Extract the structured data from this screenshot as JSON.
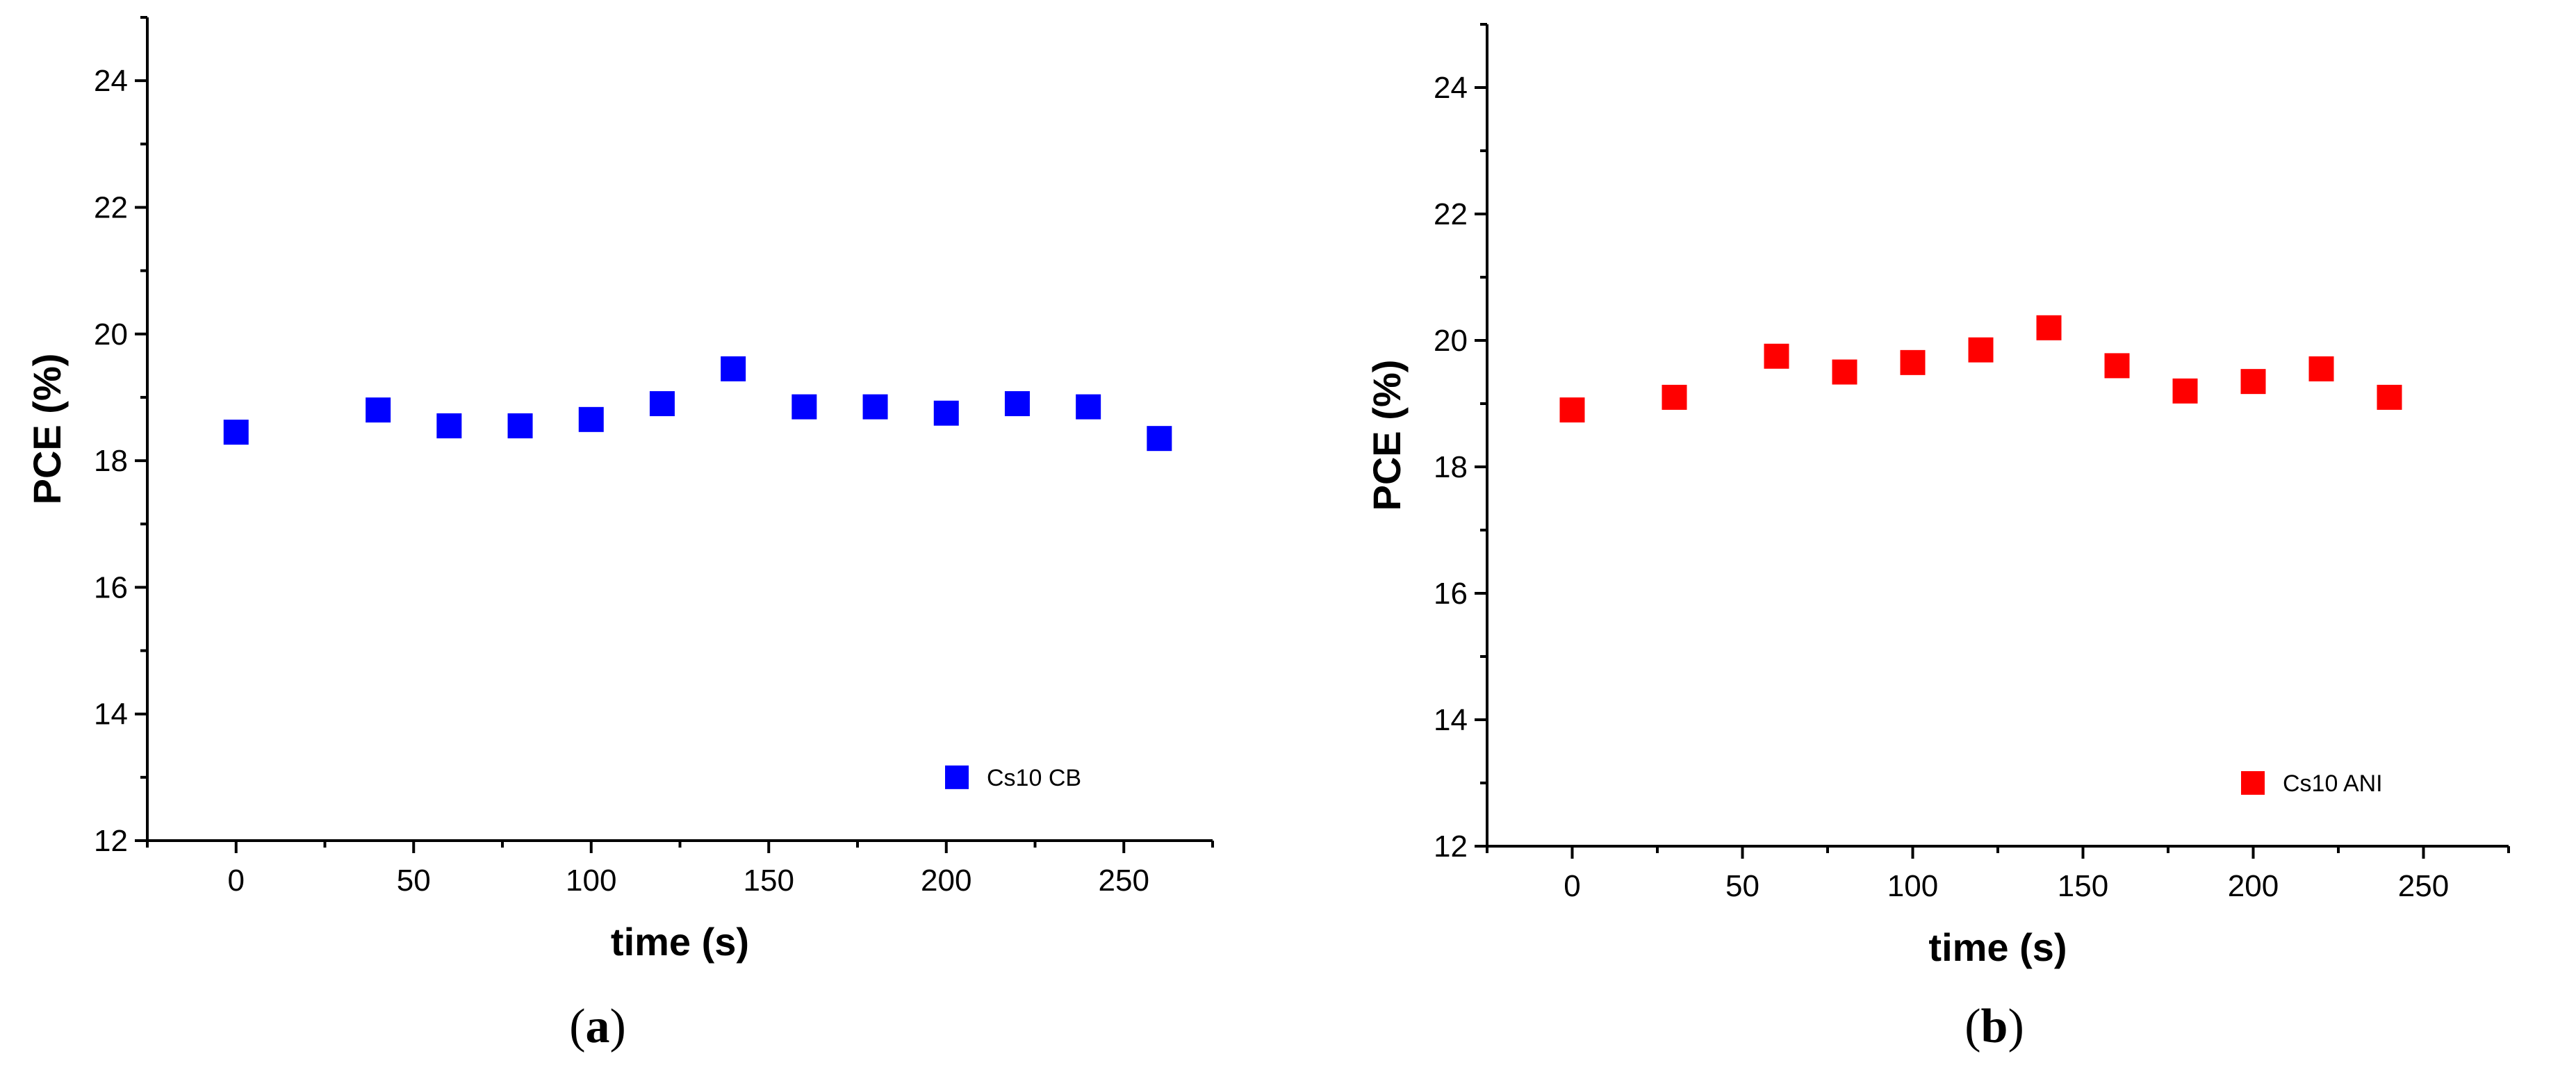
{
  "chart_data": [
    {
      "type": "scatter",
      "panel_label": "a",
      "xlabel": "time (s)",
      "ylabel": "PCE (%)",
      "xlim": [
        -25,
        275
      ],
      "ylim": [
        12,
        25
      ],
      "xticks": [
        0,
        50,
        100,
        150,
        200,
        250
      ],
      "yticks": [
        12,
        14,
        16,
        18,
        20,
        22,
        24
      ],
      "legend_position": "bottom-right",
      "series": [
        {
          "name": "Cs10 CB",
          "color": "#0000ff",
          "marker": "square",
          "x": [
            0,
            40,
            60,
            80,
            100,
            120,
            140,
            160,
            180,
            200,
            220,
            240,
            260
          ],
          "y": [
            18.45,
            18.8,
            18.55,
            18.55,
            18.65,
            18.9,
            19.45,
            18.85,
            18.85,
            18.75,
            18.9,
            18.85,
            18.35
          ]
        }
      ]
    },
    {
      "type": "scatter",
      "panel_label": "b",
      "xlabel": "time (s)",
      "ylabel": "PCE (%)",
      "xlim": [
        -25,
        275
      ],
      "ylim": [
        12,
        25
      ],
      "xticks": [
        0,
        50,
        100,
        150,
        200,
        250
      ],
      "yticks": [
        12,
        14,
        16,
        18,
        20,
        22,
        24
      ],
      "legend_position": "bottom-right",
      "series": [
        {
          "name": "Cs10 ANI",
          "color": "#ff0000",
          "marker": "square",
          "x": [
            0,
            30,
            60,
            80,
            100,
            120,
            140,
            160,
            180,
            200,
            220,
            240
          ],
          "y": [
            18.9,
            19.1,
            19.75,
            19.5,
            19.65,
            19.85,
            20.2,
            19.6,
            19.2,
            19.35,
            19.55,
            19.1
          ]
        }
      ]
    }
  ]
}
